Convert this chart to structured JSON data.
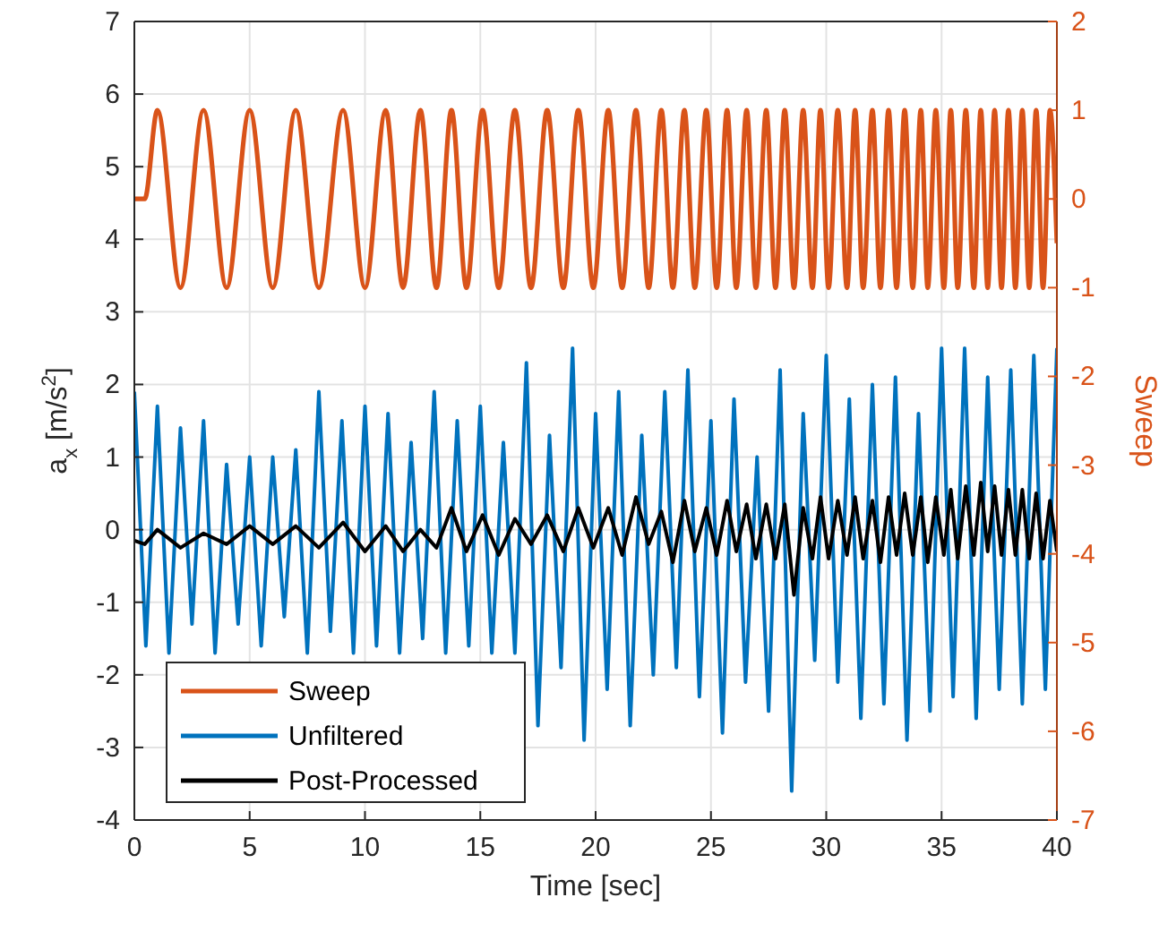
{
  "chart_data": {
    "type": "line",
    "xlabel": "Time [sec]",
    "ylabel": "a$_{x}$ [m/s$^{2}$]",
    "y2label": "Sweep",
    "xlim": [
      0,
      40
    ],
    "xticks": [
      0,
      5,
      10,
      15,
      20,
      25,
      30,
      35,
      40
    ],
    "ylim": [
      -4,
      7
    ],
    "yticks": [
      -4,
      -3,
      -2,
      -1,
      0,
      1,
      2,
      3,
      4,
      5,
      6,
      7
    ],
    "y2lim": [
      -7,
      2
    ],
    "y2ticks": [
      -7,
      -6,
      -5,
      -4,
      -3,
      -2,
      -1,
      0,
      1,
      2
    ],
    "grid": true,
    "legend": "bottom left",
    "line_style": "solid",
    "marker": "none",
    "series": [
      {
        "name": "Sweep",
        "color": "#d95319",
        "axis": "y2",
        "x": [
          0,
          0.45,
          1.0,
          2.0,
          3.0,
          4.0,
          5.0,
          6.0,
          7.0,
          8.0,
          9.05,
          10.0,
          10.9,
          11.65,
          12.4,
          13.1,
          13.75,
          14.4,
          15.1,
          15.8,
          16.5,
          17.2,
          17.9,
          18.6,
          19.25,
          19.9,
          20.55,
          21.15,
          21.75,
          22.3,
          22.85,
          23.35,
          23.85,
          24.3,
          24.8,
          25.25,
          25.7,
          26.1,
          26.55,
          26.95,
          27.4,
          27.8,
          28.2,
          28.6,
          29.0,
          29.4,
          29.75,
          30.1,
          30.5,
          30.9,
          31.25,
          31.6,
          32.0,
          32.35,
          32.7,
          33.05,
          33.4,
          33.75,
          34.1,
          34.4,
          34.75,
          35.1,
          35.4,
          35.7,
          36.05,
          36.4,
          36.7,
          37.0,
          37.3,
          37.6,
          37.9,
          38.2,
          38.5,
          38.8,
          39.1,
          39.4,
          39.7,
          40
        ],
        "values": [
          0,
          0,
          1,
          -1,
          1,
          -1,
          1,
          -1,
          1,
          -1,
          1,
          -1,
          1,
          -1,
          1,
          -1,
          1,
          -1,
          1,
          -1,
          1,
          -1,
          1,
          -1,
          1,
          -1,
          1,
          -1,
          1,
          -1,
          1,
          -1,
          1,
          -1,
          1,
          -1,
          1,
          -1,
          1,
          -1,
          1,
          -1,
          1,
          -1,
          1,
          -1,
          1,
          -1,
          1,
          -1,
          1,
          -1,
          1,
          -1,
          1,
          -1,
          1,
          -1,
          1,
          -1,
          1,
          -1,
          1,
          -1,
          1,
          -1,
          1,
          -1,
          1,
          -1,
          1,
          -1,
          1,
          -1,
          1,
          -1,
          1,
          -0.5
        ]
      },
      {
        "name": "Unfiltered",
        "color": "#0072bd",
        "x": [
          0,
          0.5,
          1,
          1.5,
          2,
          2.5,
          3,
          3.5,
          4,
          4.5,
          5,
          5.5,
          6,
          6.5,
          7,
          7.5,
          8,
          8.5,
          9,
          9.5,
          10,
          10.5,
          11,
          11.5,
          12,
          12.5,
          13,
          13.5,
          14,
          14.5,
          15,
          15.5,
          16,
          16.5,
          17,
          17.5,
          18,
          18.5,
          19,
          19.5,
          20,
          20.5,
          21,
          21.5,
          22,
          22.5,
          23,
          23.5,
          24,
          24.5,
          25,
          25.5,
          26,
          26.5,
          27,
          27.5,
          28,
          28.5,
          29,
          29.5,
          30,
          30.5,
          31,
          31.5,
          32,
          32.5,
          33,
          33.5,
          34,
          34.5,
          35,
          35.5,
          36,
          36.5,
          37,
          37.5,
          38,
          38.5,
          39,
          39.5,
          40
        ],
        "values": [
          1.9,
          -1.6,
          1.7,
          -1.7,
          1.4,
          -1.3,
          1.5,
          -1.7,
          0.9,
          -1.3,
          1.0,
          -1.6,
          1.0,
          -1.2,
          1.1,
          -1.7,
          1.9,
          -1.4,
          1.5,
          -1.7,
          1.7,
          -1.6,
          1.6,
          -1.7,
          1.2,
          -1.5,
          1.9,
          -1.7,
          1.5,
          -1.6,
          1.7,
          -1.7,
          1.2,
          -1.7,
          2.3,
          -2.7,
          1.3,
          -1.9,
          2.5,
          -2.9,
          1.6,
          -2.2,
          1.9,
          -2.7,
          1.3,
          -2.0,
          1.9,
          -1.9,
          2.2,
          -2.3,
          1.5,
          -2.8,
          1.8,
          -2.1,
          1.0,
          -2.5,
          2.2,
          -3.6,
          1.6,
          -1.8,
          2.4,
          -2.1,
          1.8,
          -2.6,
          2.0,
          -2.4,
          2.1,
          -2.9,
          1.6,
          -2.5,
          2.5,
          -2.3,
          2.5,
          -2.6,
          2.1,
          -2.2,
          2.2,
          -2.4,
          2.4,
          -2.2,
          2.5
        ]
      },
      {
        "name": "Post-Processed",
        "color": "#000000",
        "x": [
          0,
          0.45,
          1.0,
          2.0,
          3.0,
          4.0,
          5.0,
          6.0,
          7.0,
          8.0,
          9.05,
          10.0,
          10.9,
          11.65,
          12.4,
          13.1,
          13.75,
          14.4,
          15.1,
          15.8,
          16.5,
          17.2,
          17.9,
          18.6,
          19.25,
          19.9,
          20.55,
          21.15,
          21.75,
          22.3,
          22.85,
          23.35,
          23.85,
          24.3,
          24.8,
          25.25,
          25.7,
          26.1,
          26.55,
          26.95,
          27.4,
          27.8,
          28.2,
          28.6,
          29.0,
          29.4,
          29.75,
          30.1,
          30.5,
          30.9,
          31.25,
          31.6,
          32.0,
          32.35,
          32.7,
          33.05,
          33.4,
          33.75,
          34.1,
          34.4,
          34.75,
          35.1,
          35.4,
          35.7,
          36.05,
          36.4,
          36.7,
          37.0,
          37.3,
          37.6,
          37.9,
          38.2,
          38.5,
          38.8,
          39.1,
          39.4,
          39.7,
          40
        ],
        "values": [
          -0.15,
          -0.2,
          0.0,
          -0.25,
          -0.05,
          -0.2,
          0.05,
          -0.2,
          0.05,
          -0.25,
          0.1,
          -0.3,
          0.05,
          -0.3,
          0.0,
          -0.25,
          0.3,
          -0.3,
          0.2,
          -0.35,
          0.15,
          -0.2,
          0.2,
          -0.3,
          0.3,
          -0.25,
          0.3,
          -0.35,
          0.45,
          -0.2,
          0.25,
          -0.45,
          0.4,
          -0.3,
          0.3,
          -0.35,
          0.4,
          -0.3,
          0.35,
          -0.4,
          0.35,
          -0.4,
          0.35,
          -0.9,
          0.3,
          -0.4,
          0.45,
          -0.4,
          0.4,
          -0.35,
          0.45,
          -0.4,
          0.4,
          -0.45,
          0.45,
          -0.35,
          0.5,
          -0.35,
          0.45,
          -0.45,
          0.45,
          -0.35,
          0.55,
          -0.4,
          0.6,
          -0.35,
          0.65,
          -0.3,
          0.6,
          -0.35,
          0.55,
          -0.35,
          0.55,
          -0.4,
          0.5,
          -0.4,
          0.4,
          -0.3
        ]
      }
    ]
  }
}
